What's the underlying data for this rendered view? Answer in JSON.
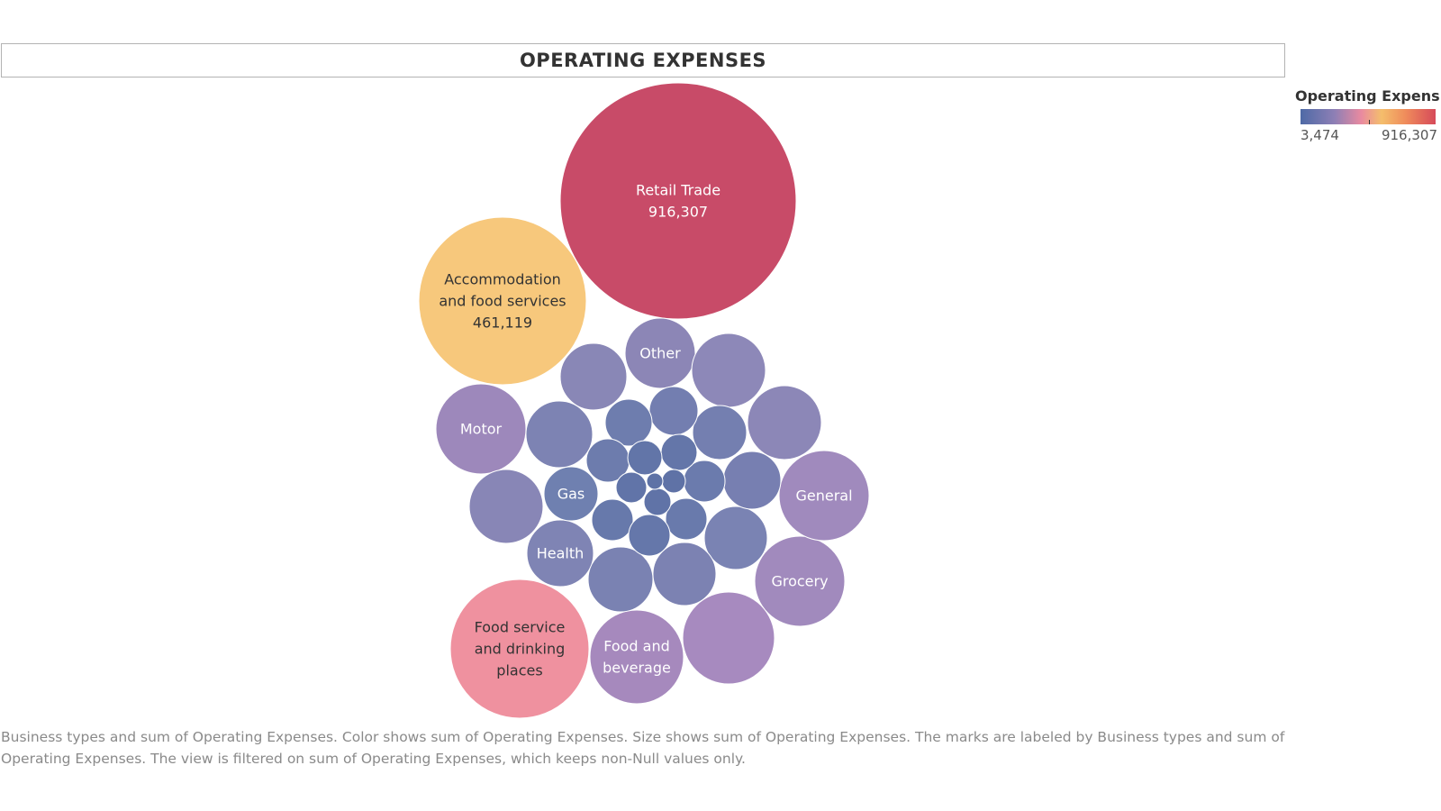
{
  "chart_data": {
    "type": "bubble",
    "title": "OPERATING EXPENSES",
    "legend": {
      "title": "Operating Expens..",
      "min_label": "3,474",
      "max_label": "916,307",
      "placement": "top-right"
    },
    "caption": "Business types and sum of Operating Expenses.  Color shows sum of Operating Expenses.  Size shows sum of Operating Expenses.  The marks are labeled by Business types and sum of Operating Expenses. The view is filtered on sum of Operating Expenses, which keeps non-Null values only.",
    "bubbles": [
      {
        "label": [
          "Retail Trade",
          "916,307"
        ],
        "value": 916307,
        "color": "#c84b68",
        "text_color": "#ffffff"
      },
      {
        "label": [
          "Accommodation",
          "and food services",
          "461,119"
        ],
        "value": 461119,
        "color": "#f7c87c",
        "text_color": "#333333"
      },
      {
        "label": [
          "Food service",
          "and drinking",
          "places"
        ],
        "color": "#ef919f",
        "text_color": "#333333"
      },
      {
        "label": [
          "Food and",
          "beverage"
        ],
        "color": "#a689bd",
        "text_color": "#ffffff"
      },
      {
        "label": [
          "Grocery"
        ],
        "color": "#a18abd",
        "text_color": "#ffffff"
      },
      {
        "label": [
          "General"
        ],
        "color": "#a08abd",
        "text_color": "#ffffff"
      },
      {
        "label": [
          "Motor"
        ],
        "color": "#9d88bb",
        "text_color": "#ffffff"
      },
      {
        "label": [
          "Other"
        ],
        "color": "#8c86b6",
        "text_color": "#ffffff"
      },
      {
        "label": [
          "Health"
        ],
        "color": "#7f84b4",
        "text_color": "#ffffff"
      },
      {
        "label": [
          "Gas"
        ],
        "color": "#6f80b0",
        "text_color": "#ffffff"
      },
      {
        "label": [],
        "color": "#a78abf",
        "text_color": "#ffffff"
      },
      {
        "label": [],
        "color": "#8d88b8",
        "text_color": "#ffffff"
      },
      {
        "label": [],
        "color": "#8c87b7",
        "text_color": "#ffffff"
      },
      {
        "label": [],
        "color": "#8886b6",
        "text_color": "#ffffff"
      },
      {
        "label": [],
        "color": "#8987b6",
        "text_color": "#ffffff"
      },
      {
        "label": [],
        "color": "#7d83b3",
        "text_color": "#ffffff"
      },
      {
        "label": [],
        "color": "#7a83b3",
        "text_color": "#ffffff"
      },
      {
        "label": [],
        "color": "#7a82b2",
        "text_color": "#ffffff"
      },
      {
        "label": [],
        "color": "#7c82b2",
        "text_color": "#ffffff"
      },
      {
        "label": [],
        "color": "#777fb1",
        "text_color": "#ffffff"
      },
      {
        "label": [],
        "color": "#747fb0",
        "text_color": "#ffffff"
      },
      {
        "label": [],
        "color": "#737eb0",
        "text_color": "#ffffff"
      },
      {
        "label": [],
        "color": "#6e7dae",
        "text_color": "#ffffff"
      },
      {
        "label": [],
        "color": "#6d7cad",
        "text_color": "#ffffff"
      },
      {
        "label": [],
        "color": "#6b7bad",
        "text_color": "#ffffff"
      },
      {
        "label": [],
        "color": "#697aac",
        "text_color": "#ffffff"
      },
      {
        "label": [],
        "color": "#6779ab",
        "text_color": "#ffffff"
      },
      {
        "label": [],
        "color": "#6577aa",
        "text_color": "#ffffff"
      },
      {
        "label": [],
        "color": "#6476a9",
        "text_color": "#ffffff"
      },
      {
        "label": [],
        "color": "#6275a8",
        "text_color": "#ffffff"
      },
      {
        "label": [],
        "color": "#6174a8",
        "text_color": "#ffffff"
      },
      {
        "label": [],
        "color": "#6073a7",
        "text_color": "#ffffff"
      },
      {
        "label": [],
        "color": "#5f72a6",
        "text_color": "#ffffff"
      },
      {
        "label": [],
        "color": "#5e72a6",
        "text_color": "#ffffff"
      }
    ]
  }
}
